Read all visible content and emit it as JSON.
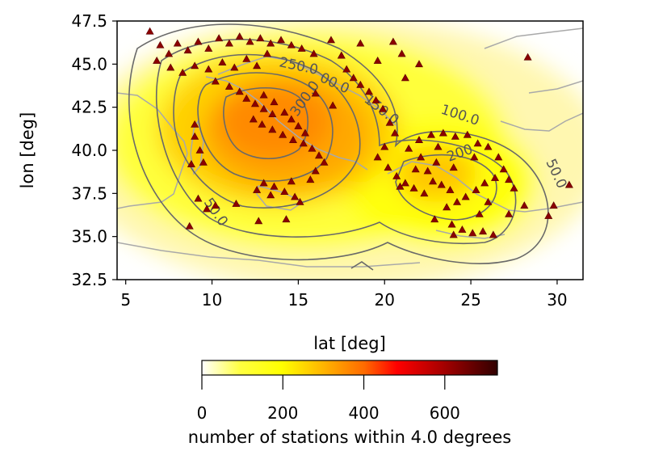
{
  "chart_data": {
    "type": "heatmap",
    "xlabel": "lat [deg]",
    "ylabel": "lon [deg]",
    "xlim": [
      4.5,
      31.5
    ],
    "ylim": [
      32.5,
      47.5
    ],
    "x_ticks": [
      5,
      10,
      15,
      20,
      25,
      30
    ],
    "x_tick_labels": [
      "5",
      "10",
      "15",
      "20",
      "25",
      "30"
    ],
    "y_ticks": [
      32.5,
      35.0,
      37.5,
      40.0,
      42.5,
      45.0,
      47.5
    ],
    "y_tick_labels": [
      "32.5",
      "35.0",
      "37.5",
      "40.0",
      "42.5",
      "45.0",
      "47.5"
    ],
    "grid": false,
    "colormap": "hot_r",
    "colors": {
      "low": "#ffffff",
      "mid_low": "#ffff00",
      "mid": "#ff8c00",
      "mid_high": "#ff0000",
      "high": "#3c0000",
      "station_marker": "#8b0000",
      "coastline": "#a9a9a9",
      "contour": "#696969"
    },
    "colorbar": {
      "label": "number of stations within 4.0 degrees",
      "range": [
        0,
        730
      ],
      "ticks": [
        0,
        200,
        400,
        600
      ],
      "tick_labels": [
        "0",
        "200",
        "400",
        "600"
      ],
      "orientation": "horizontal"
    },
    "contours": {
      "levels": [
        50,
        100,
        150,
        200,
        250,
        300
      ],
      "labels": [
        "50.0",
        "100.0",
        "150.0",
        "200.0",
        "250.0",
        "300.0"
      ]
    },
    "stations": [
      [
        6.4,
        46.9
      ],
      [
        7.0,
        46.1
      ],
      [
        7.5,
        45.6
      ],
      [
        8.0,
        46.2
      ],
      [
        8.6,
        45.8
      ],
      [
        9.2,
        46.3
      ],
      [
        9.8,
        45.9
      ],
      [
        10.4,
        46.5
      ],
      [
        11.0,
        46.2
      ],
      [
        11.6,
        46.6
      ],
      [
        12.2,
        46.3
      ],
      [
        12.8,
        46.5
      ],
      [
        13.4,
        46.2
      ],
      [
        14.0,
        46.4
      ],
      [
        14.6,
        46.1
      ],
      [
        15.2,
        45.9
      ],
      [
        6.8,
        45.2
      ],
      [
        7.6,
        44.8
      ],
      [
        8.3,
        44.5
      ],
      [
        9.0,
        44.9
      ],
      [
        9.8,
        44.7
      ],
      [
        10.6,
        45.1
      ],
      [
        11.3,
        44.8
      ],
      [
        12.0,
        45.3
      ],
      [
        12.6,
        44.9
      ],
      [
        13.2,
        45.6
      ],
      [
        10.2,
        44.0
      ],
      [
        11.0,
        43.7
      ],
      [
        11.6,
        43.4
      ],
      [
        12.0,
        43.0
      ],
      [
        12.5,
        42.7
      ],
      [
        13.0,
        42.4
      ],
      [
        13.5,
        42.1
      ],
      [
        13.0,
        43.2
      ],
      [
        13.6,
        42.8
      ],
      [
        14.2,
        42.2
      ],
      [
        14.6,
        41.8
      ],
      [
        15.0,
        41.4
      ],
      [
        15.4,
        41.0
      ],
      [
        12.4,
        41.8
      ],
      [
        12.9,
        41.5
      ],
      [
        13.5,
        41.2
      ],
      [
        14.1,
        40.9
      ],
      [
        14.7,
        40.6
      ],
      [
        15.3,
        40.4
      ],
      [
        15.8,
        40.1
      ],
      [
        16.2,
        39.7
      ],
      [
        16.5,
        39.3
      ],
      [
        16.0,
        38.8
      ],
      [
        15.7,
        38.3
      ],
      [
        13.0,
        38.1
      ],
      [
        13.6,
        37.9
      ],
      [
        14.2,
        37.6
      ],
      [
        14.8,
        37.3
      ],
      [
        15.1,
        37.0
      ],
      [
        12.6,
        37.7
      ],
      [
        13.4,
        37.4
      ],
      [
        14.6,
        38.2
      ],
      [
        9.0,
        40.8
      ],
      [
        9.3,
        40.0
      ],
      [
        8.8,
        39.2
      ],
      [
        9.5,
        39.3
      ],
      [
        9.0,
        41.5
      ],
      [
        8.7,
        35.6
      ],
      [
        9.2,
        37.2
      ],
      [
        9.7,
        36.6
      ],
      [
        10.2,
        36.8
      ],
      [
        11.4,
        36.9
      ],
      [
        12.7,
        35.9
      ],
      [
        14.3,
        36.0
      ],
      [
        17.5,
        45.5
      ],
      [
        17.8,
        44.7
      ],
      [
        18.2,
        44.2
      ],
      [
        18.6,
        43.8
      ],
      [
        19.1,
        43.4
      ],
      [
        19.5,
        42.9
      ],
      [
        19.9,
        42.4
      ],
      [
        20.3,
        41.6
      ],
      [
        20.6,
        41.0
      ],
      [
        20.0,
        40.2
      ],
      [
        19.6,
        39.6
      ],
      [
        20.2,
        39.0
      ],
      [
        20.7,
        38.5
      ],
      [
        21.2,
        38.1
      ],
      [
        21.7,
        37.8
      ],
      [
        22.3,
        37.5
      ],
      [
        22.8,
        38.2
      ],
      [
        23.3,
        38.0
      ],
      [
        23.8,
        37.7
      ],
      [
        22.5,
        38.8
      ],
      [
        23.0,
        39.3
      ],
      [
        22.1,
        39.6
      ],
      [
        21.4,
        40.1
      ],
      [
        22.0,
        40.6
      ],
      [
        22.7,
        40.9
      ],
      [
        23.4,
        41.0
      ],
      [
        24.1,
        40.8
      ],
      [
        24.8,
        40.9
      ],
      [
        25.4,
        40.4
      ],
      [
        26.0,
        40.2
      ],
      [
        26.6,
        39.6
      ],
      [
        26.9,
        38.9
      ],
      [
        27.2,
        38.3
      ],
      [
        27.5,
        37.8
      ],
      [
        26.4,
        38.4
      ],
      [
        25.8,
        38.1
      ],
      [
        25.3,
        37.7
      ],
      [
        24.7,
        37.3
      ],
      [
        24.2,
        37.0
      ],
      [
        23.6,
        36.7
      ],
      [
        23.9,
        35.7
      ],
      [
        24.5,
        35.4
      ],
      [
        25.1,
        35.2
      ],
      [
        25.7,
        35.3
      ],
      [
        26.3,
        35.1
      ],
      [
        24.0,
        35.1
      ],
      [
        22.9,
        36.0
      ],
      [
        27.2,
        36.3
      ],
      [
        28.1,
        36.8
      ],
      [
        29.5,
        36.2
      ],
      [
        29.8,
        36.8
      ],
      [
        30.7,
        38.0
      ],
      [
        28.3,
        45.4
      ],
      [
        22.0,
        45.0
      ],
      [
        21.0,
        45.6
      ],
      [
        20.5,
        46.3
      ],
      [
        19.6,
        45.2
      ],
      [
        18.6,
        46.2
      ],
      [
        16.9,
        46.4
      ],
      [
        15.9,
        45.6
      ],
      [
        21.2,
        44.2
      ],
      [
        23.1,
        40.2
      ],
      [
        25.2,
        39.6
      ],
      [
        24.0,
        39.0
      ],
      [
        16.0,
        43.3
      ],
      [
        17.0,
        42.6
      ],
      [
        21.8,
        38.9
      ],
      [
        20.9,
        37.9
      ],
      [
        25.5,
        36.3
      ],
      [
        26.0,
        37.0
      ]
    ]
  }
}
